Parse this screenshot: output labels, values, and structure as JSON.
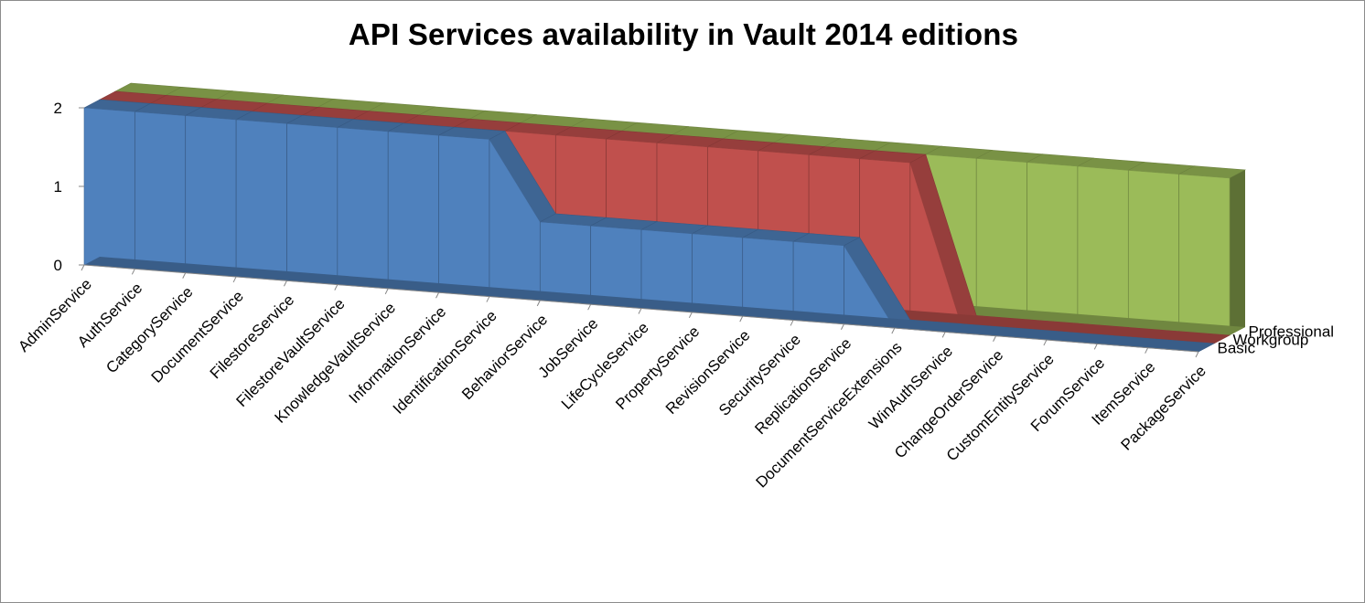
{
  "chart_data": {
    "type": "area",
    "title": "API Services availability in Vault 2014 editions",
    "categories": [
      "AdminService",
      "AuthService",
      "CategoryService",
      "DocumentService",
      "FilestoreService",
      "FilestoreVaultService",
      "KnowledgeVaultService",
      "InformationService",
      "IdentificationService",
      "BehaviorService",
      "JobService",
      "LifeCycleService",
      "PropertyService",
      "RevisionService",
      "SecurityService",
      "ReplicationService",
      "DocumentServiceExtensions",
      "WinAuthService",
      "ChangeOrderService",
      "CustomEntityService",
      "ForumService",
      "ItemService",
      "PackageService"
    ],
    "series": [
      {
        "name": "Basic",
        "color": "#4f81bd",
        "values": [
          2,
          2,
          2,
          2,
          2,
          2,
          2,
          2,
          2,
          1,
          1,
          1,
          1,
          1,
          1,
          1,
          0,
          0,
          0,
          0,
          0,
          0,
          0
        ]
      },
      {
        "name": "Workgroup",
        "color": "#c0504d",
        "values": [
          2,
          2,
          2,
          2,
          2,
          2,
          2,
          2,
          2,
          2,
          2,
          2,
          2,
          2,
          2,
          2,
          2,
          0,
          0,
          0,
          0,
          0,
          0
        ]
      },
      {
        "name": "Professional",
        "color": "#9bbb59",
        "values": [
          2,
          2,
          2,
          2,
          2,
          2,
          2,
          2,
          2,
          2,
          2,
          2,
          2,
          2,
          2,
          2,
          2,
          2,
          2,
          2,
          2,
          2,
          2
        ]
      }
    ],
    "yticks": [
      "0",
      "1",
      "2"
    ],
    "ylim": [
      0,
      2
    ],
    "xlabel": "",
    "ylabel": "",
    "legend_position": "depth axis (right)"
  }
}
